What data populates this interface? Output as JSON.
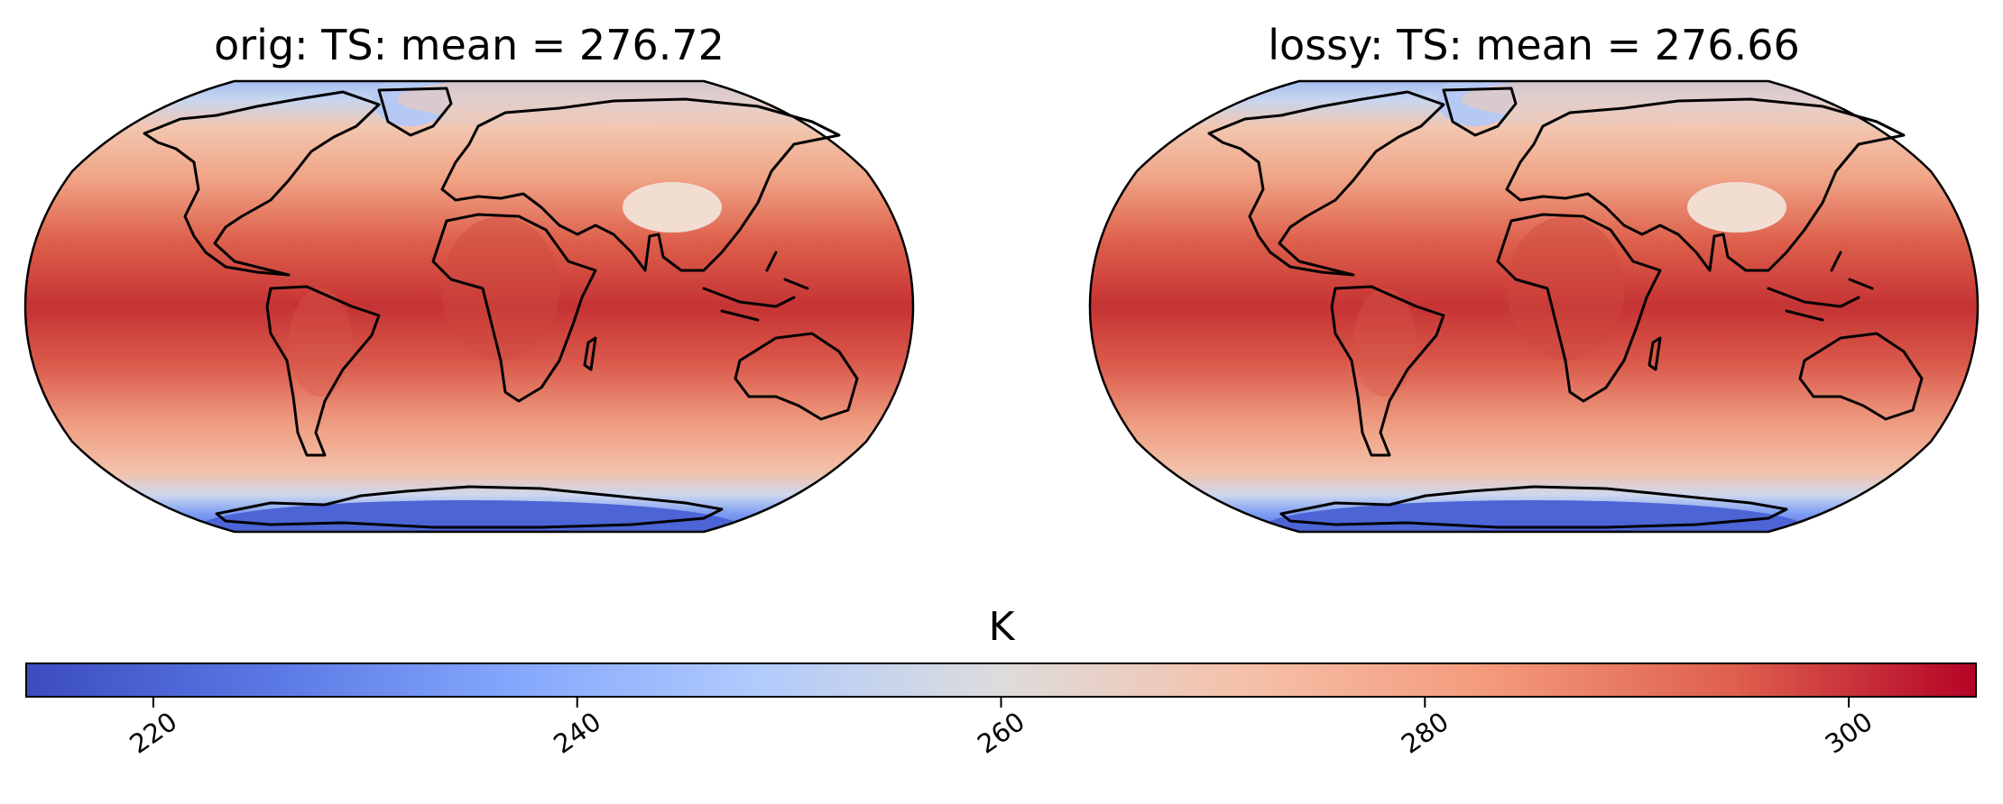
{
  "panels": [
    {
      "title": "orig: TS: mean =  276.72"
    },
    {
      "title": "lossy: TS: mean =  276.66"
    }
  ],
  "colorbar": {
    "label": "K",
    "colormap": "coolwarm",
    "range": [
      214,
      306
    ],
    "ticks": [
      "220",
      "240",
      "260",
      "280",
      "300"
    ],
    "colors": [
      "#3b4cc0",
      "#6788ee",
      "#9abbff",
      "#c9d7f0",
      "#dddcdc",
      "#f7b89c",
      "#f18a6a",
      "#d24b40",
      "#b40426"
    ]
  },
  "map": {
    "projection": "Robinson",
    "coastlines": true
  }
}
